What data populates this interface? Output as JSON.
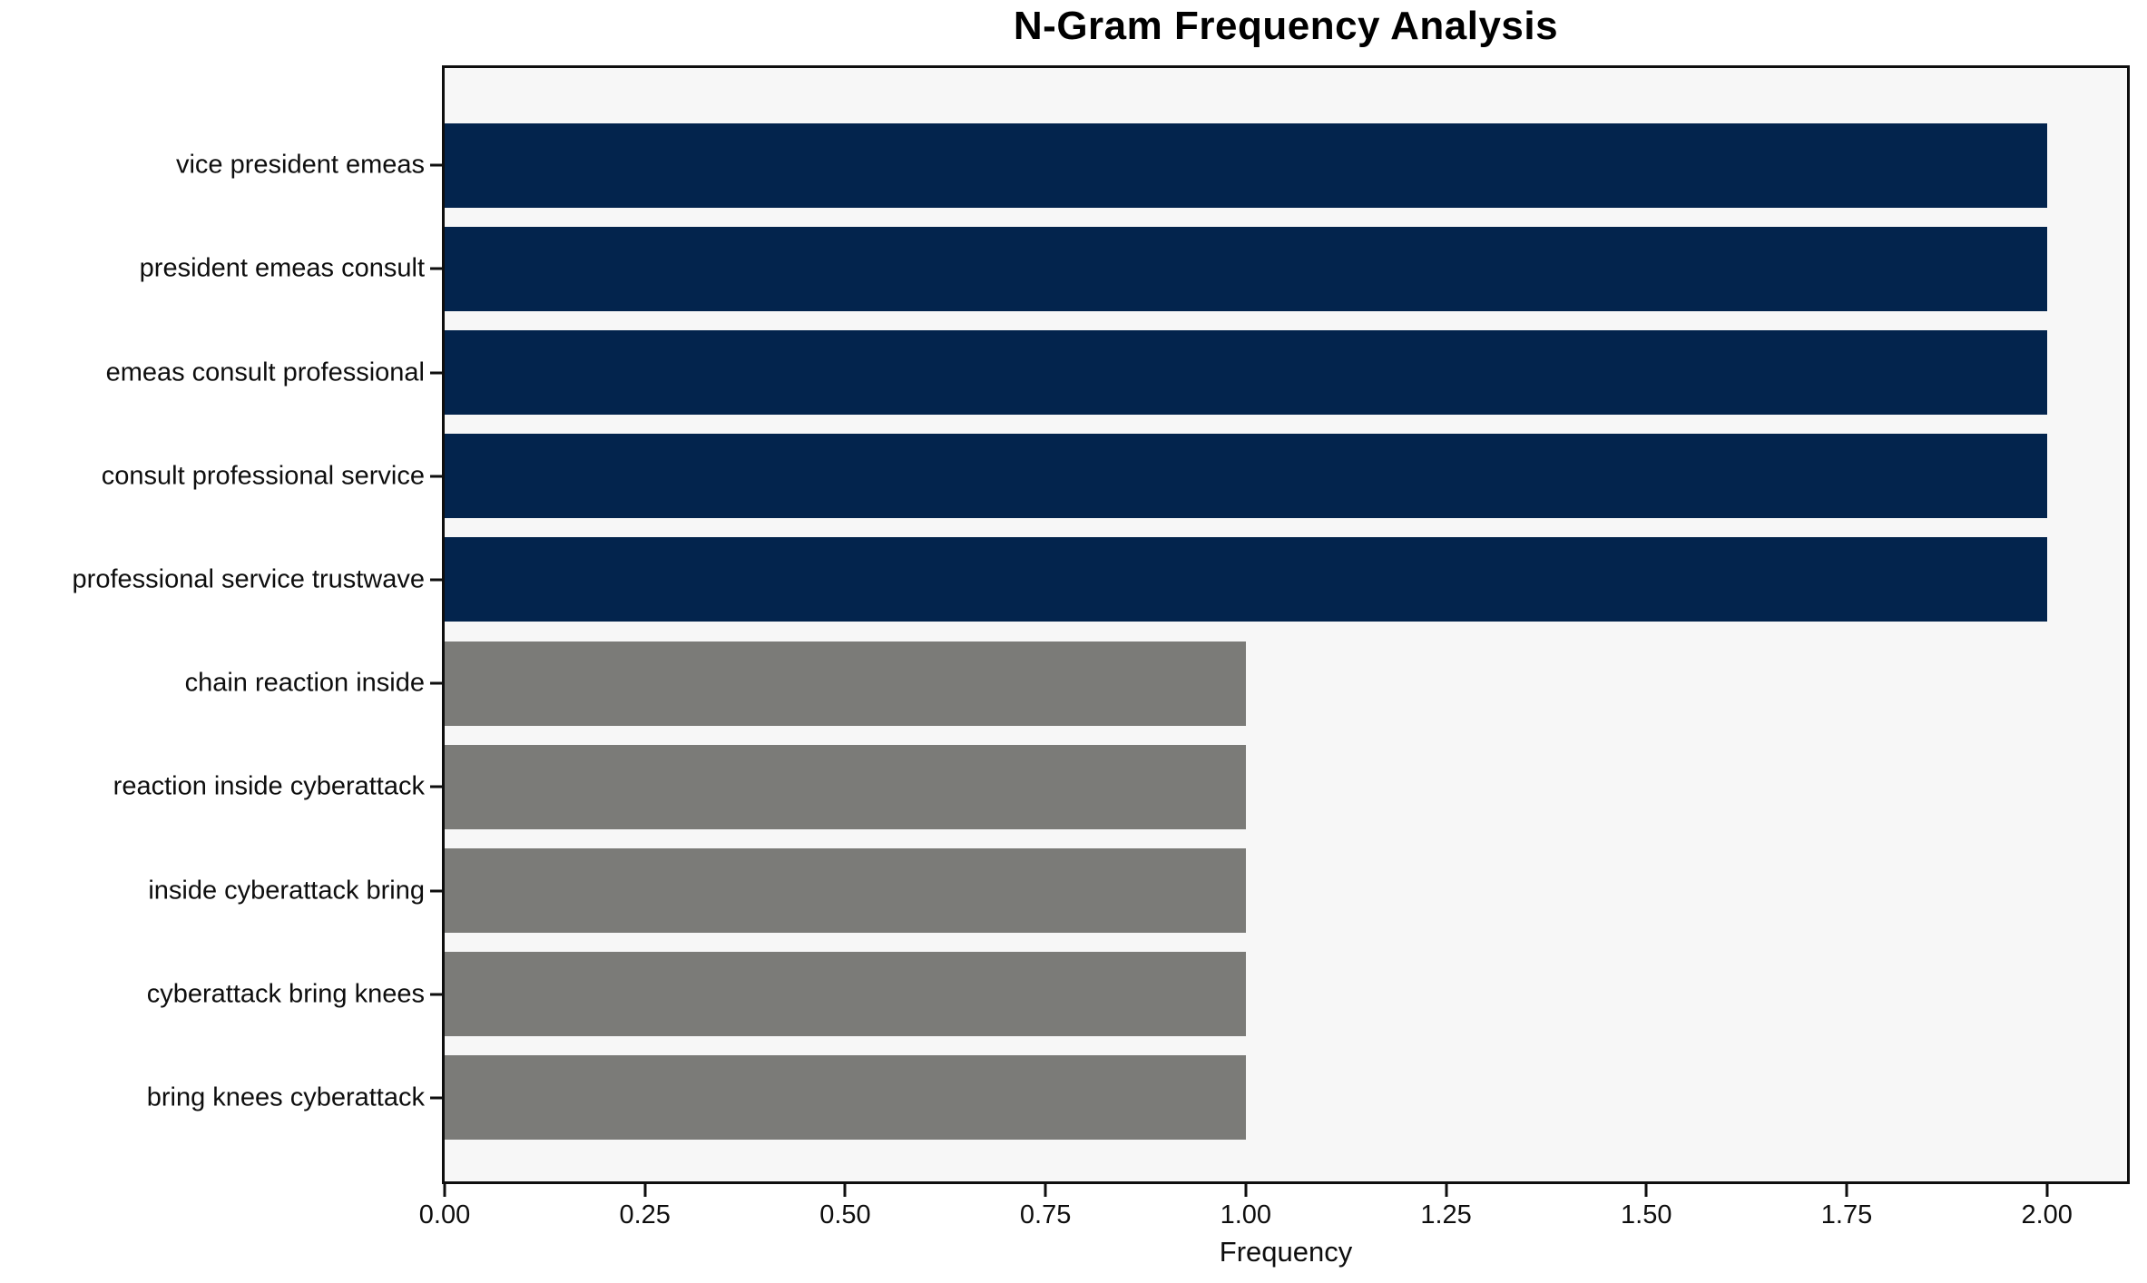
{
  "chart_data": {
    "type": "bar",
    "orientation": "horizontal",
    "title": "N-Gram Frequency Analysis",
    "xlabel": "Frequency",
    "ylabel": "",
    "categories": [
      "vice president emeas",
      "president emeas consult",
      "emeas consult professional",
      "consult professional service",
      "professional service trustwave",
      "chain reaction inside",
      "reaction inside cyberattack",
      "inside cyberattack bring",
      "cyberattack bring knees",
      "bring knees cyberattack"
    ],
    "values": [
      2,
      2,
      2,
      2,
      2,
      1,
      1,
      1,
      1,
      1
    ],
    "bar_colors": [
      "#03244d",
      "#03244d",
      "#03244d",
      "#03244d",
      "#03244d",
      "#7b7b78",
      "#7b7b78",
      "#7b7b78",
      "#7b7b78",
      "#7b7b78"
    ],
    "xlim": [
      0,
      2.1
    ],
    "xticks": [
      {
        "label": "0.00",
        "value": 0.0
      },
      {
        "label": "0.25",
        "value": 0.25
      },
      {
        "label": "0.50",
        "value": 0.5
      },
      {
        "label": "0.75",
        "value": 0.75
      },
      {
        "label": "1.00",
        "value": 1.0
      },
      {
        "label": "1.25",
        "value": 1.25
      },
      {
        "label": "1.50",
        "value": 1.5
      },
      {
        "label": "1.75",
        "value": 1.75
      },
      {
        "label": "2.00",
        "value": 2.0
      }
    ],
    "grid": false,
    "legend": "none",
    "plot_background": "#f7f7f7",
    "figure_background": "#ffffff",
    "highlight_color": "#03244d",
    "base_color": "#7b7b78"
  }
}
